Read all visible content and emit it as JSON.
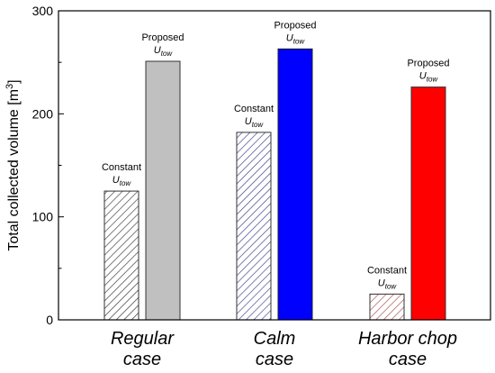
{
  "chart_data": {
    "type": "bar",
    "ylabel": "Total collected volume [m",
    "ylabel_sup": "3",
    "ylabel_close": "]",
    "ylim": [
      0,
      300
    ],
    "yticks": [
      "0",
      "100",
      "200",
      "300"
    ],
    "groups": [
      {
        "label_line1": "Regular",
        "label_line2": "case",
        "bars": [
          {
            "annot_line1": "Constant",
            "annot_sym": "U",
            "annot_sub": "tow",
            "value": 125,
            "fill": "hatch",
            "hatch_color": "#333333",
            "edge": "#333333"
          },
          {
            "annot_line1": "Proposed",
            "annot_sym": "U",
            "annot_sub": "tow",
            "value": 251,
            "fill": "#c0c0c0",
            "edge": "#333333"
          }
        ]
      },
      {
        "label_line1": "Calm",
        "label_line2": "case",
        "bars": [
          {
            "annot_line1": "Constant",
            "annot_sym": "U",
            "annot_sub": "tow",
            "value": 182,
            "fill": "hatch",
            "hatch_color": "#3a3a8a",
            "edge": "#333333"
          },
          {
            "annot_line1": "Proposed",
            "annot_sym": "U",
            "annot_sub": "tow",
            "value": 263,
            "fill": "#0000ff",
            "edge": "#222222"
          }
        ]
      },
      {
        "label_line1": "Harbor chop",
        "label_line2": "case",
        "bars": [
          {
            "annot_line1": "Constant",
            "annot_sym": "U",
            "annot_sub": "tow",
            "value": 25,
            "fill": "hatch",
            "hatch_color": "#aa5555",
            "edge": "#333333"
          },
          {
            "annot_line1": "Proposed",
            "annot_sym": "U",
            "annot_sub": "tow",
            "value": 226,
            "fill": "#ff0000",
            "edge": "#333333"
          }
        ]
      }
    ]
  }
}
